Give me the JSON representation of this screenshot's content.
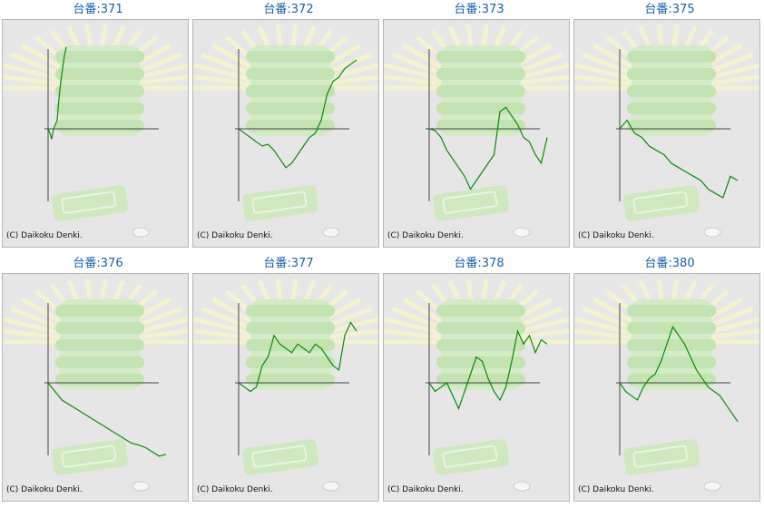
{
  "copyright": "(C) Daikoku Denki.",
  "colors": {
    "title": "#1a5fa8",
    "line": "#0a8a0a",
    "axis": "#444444",
    "background": "#e6e6e6"
  },
  "panels": [
    {
      "title": "台番:371"
    },
    {
      "title": "台番:372"
    },
    {
      "title": "台番:373"
    },
    {
      "title": "台番:375"
    },
    {
      "title": "台番:376"
    },
    {
      "title": "台番:377"
    },
    {
      "title": "台番:378"
    },
    {
      "title": "台番:380"
    }
  ],
  "chart_data": [
    {
      "type": "line",
      "title": "台番:371",
      "ylim": [
        -1,
        1
      ],
      "x": [
        0,
        1,
        2,
        3,
        4,
        5,
        6,
        7,
        8,
        9,
        10
      ],
      "series": [
        {
          "values": [
            0.0,
            -0.05,
            -0.12,
            0.0,
            0.05,
            0.1,
            0.35,
            0.55,
            0.7,
            0.85,
            0.95
          ]
        }
      ]
    },
    {
      "type": "line",
      "title": "台番:372",
      "ylim": [
        -1,
        1
      ],
      "x": [
        0,
        5,
        10,
        15,
        20,
        25,
        30,
        35,
        40,
        45,
        50,
        55,
        60,
        65,
        70,
        75,
        80,
        85,
        90,
        95,
        100
      ],
      "series": [
        {
          "values": [
            0.0,
            -0.05,
            -0.1,
            -0.15,
            -0.2,
            -0.18,
            -0.25,
            -0.35,
            -0.45,
            -0.4,
            -0.3,
            -0.2,
            -0.1,
            -0.05,
            0.1,
            0.4,
            0.55,
            0.6,
            0.7,
            0.75,
            0.8
          ]
        }
      ]
    },
    {
      "type": "line",
      "title": "台番:373",
      "ylim": [
        -1,
        1
      ],
      "x": [
        0,
        5,
        10,
        15,
        20,
        25,
        30,
        35,
        40,
        45,
        50,
        55,
        60,
        65,
        70,
        75,
        80,
        85,
        90,
        95,
        100
      ],
      "series": [
        {
          "values": [
            0.0,
            -0.02,
            -0.1,
            -0.25,
            -0.35,
            -0.45,
            -0.55,
            -0.7,
            -0.6,
            -0.5,
            -0.4,
            -0.3,
            0.2,
            0.25,
            0.15,
            0.05,
            -0.1,
            -0.15,
            -0.3,
            -0.4,
            -0.1
          ]
        }
      ]
    },
    {
      "type": "line",
      "title": "台番:375",
      "ylim": [
        -1,
        1
      ],
      "x": [
        0,
        5,
        10,
        15,
        20,
        25,
        30,
        35,
        40,
        45,
        50,
        55,
        60,
        65,
        70,
        75,
        80
      ],
      "series": [
        {
          "values": [
            0.0,
            0.1,
            -0.05,
            -0.1,
            -0.2,
            -0.25,
            -0.3,
            -0.4,
            -0.45,
            -0.5,
            -0.55,
            -0.6,
            -0.7,
            -0.75,
            -0.8,
            -0.55,
            -0.6
          ]
        }
      ]
    },
    {
      "type": "line",
      "title": "台番:376",
      "ylim": [
        -1,
        1
      ],
      "x": [
        0,
        5,
        10,
        15,
        20,
        25,
        30,
        35,
        40,
        45,
        50,
        55,
        60,
        65,
        70,
        75,
        80,
        85
      ],
      "series": [
        {
          "values": [
            0.0,
            -0.1,
            -0.2,
            -0.25,
            -0.3,
            -0.35,
            -0.4,
            -0.45,
            -0.5,
            -0.55,
            -0.6,
            -0.65,
            -0.7,
            -0.72,
            -0.75,
            -0.8,
            -0.85,
            -0.83
          ]
        }
      ]
    },
    {
      "type": "line",
      "title": "台番:377",
      "ylim": [
        -1,
        1
      ],
      "x": [
        0,
        5,
        10,
        15,
        20,
        25,
        30,
        35,
        40,
        45,
        50,
        55,
        60,
        65,
        70,
        75,
        80,
        85,
        90,
        95,
        100
      ],
      "series": [
        {
          "values": [
            0.0,
            -0.05,
            -0.1,
            -0.05,
            0.2,
            0.3,
            0.55,
            0.45,
            0.4,
            0.35,
            0.45,
            0.4,
            0.35,
            0.45,
            0.4,
            0.3,
            0.2,
            0.15,
            0.55,
            0.7,
            0.6
          ]
        }
      ]
    },
    {
      "type": "line",
      "title": "台番:378",
      "ylim": [
        -1,
        1
      ],
      "x": [
        0,
        5,
        10,
        15,
        20,
        25,
        30,
        35,
        40,
        45,
        50,
        55,
        60,
        65,
        70,
        75,
        80,
        85,
        90,
        95,
        100
      ],
      "series": [
        {
          "values": [
            0.0,
            -0.1,
            -0.05,
            0.0,
            -0.15,
            -0.3,
            -0.1,
            0.1,
            0.3,
            0.25,
            0.05,
            -0.1,
            -0.2,
            -0.05,
            0.25,
            0.6,
            0.45,
            0.55,
            0.35,
            0.5,
            0.45
          ]
        }
      ]
    },
    {
      "type": "line",
      "title": "台番:380",
      "ylim": [
        -1,
        1
      ],
      "x": [
        0,
        5,
        10,
        15,
        20,
        25,
        30,
        35,
        40,
        45,
        50,
        55,
        60,
        65,
        70,
        75,
        80,
        85,
        90,
        95,
        100
      ],
      "series": [
        {
          "values": [
            0.0,
            -0.1,
            -0.15,
            -0.2,
            -0.05,
            0.05,
            0.1,
            0.25,
            0.45,
            0.65,
            0.55,
            0.45,
            0.3,
            0.15,
            0.05,
            -0.05,
            -0.1,
            -0.15,
            -0.25,
            -0.35,
            -0.45
          ]
        }
      ]
    }
  ]
}
